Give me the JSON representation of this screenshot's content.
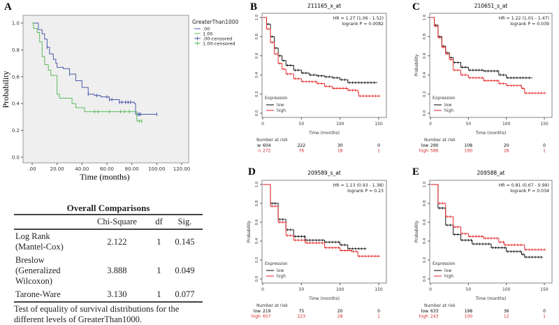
{
  "chart_data": [
    {
      "panel": "A",
      "type": "line",
      "title": "",
      "xlabel": "Time (months)",
      "ylabel": "Probability",
      "xlim": [
        0,
        120
      ],
      "ylim": [
        0,
        1
      ],
      "xticks": [
        ".00",
        "20.00",
        "40.00",
        "60.00",
        "80.00",
        "100.00",
        "120.00"
      ],
      "xtick_values": [
        0,
        20,
        40,
        60,
        80,
        100,
        120
      ],
      "yticks": [
        "0.0",
        "0.2",
        "0.4",
        "0.6",
        "0.8",
        "1.0"
      ],
      "ytick_values": [
        0,
        0.2,
        0.4,
        0.6,
        0.8,
        1.0
      ],
      "legend_title": "GreaterThan1000",
      "legend": [
        ".00",
        "1.00",
        ".00-censored",
        "1.00-censored"
      ],
      "legend_placement": "right-outside",
      "background": "#efefef",
      "series": [
        {
          "name": ".00",
          "color": "#4a5aa8",
          "points": [
            [
              0,
              1
            ],
            [
              3,
              1
            ],
            [
              5,
              0.95
            ],
            [
              8,
              0.92
            ],
            [
              10,
              0.88
            ],
            [
              12,
              0.82
            ],
            [
              14,
              0.77
            ],
            [
              17,
              0.73
            ],
            [
              19,
              0.7
            ],
            [
              20,
              0.67
            ],
            [
              25,
              0.66
            ],
            [
              30,
              0.62
            ],
            [
              35,
              0.57
            ],
            [
              40,
              0.52
            ],
            [
              45,
              0.47
            ],
            [
              50,
              0.46
            ],
            [
              55,
              0.45
            ],
            [
              62,
              0.43
            ],
            [
              70,
              0.41
            ],
            [
              82,
              0.4
            ],
            [
              83,
              0.32
            ],
            [
              100,
              0.32
            ]
          ],
          "censored": [
            12,
            30,
            45,
            52,
            60,
            62,
            64,
            70,
            72,
            75,
            77,
            79,
            85,
            86,
            87,
            100
          ]
        },
        {
          "name": "1.00",
          "color": "#5cb85c",
          "points": [
            [
              0,
              1
            ],
            [
              1,
              0.96
            ],
            [
              4,
              0.93
            ],
            [
              6,
              0.86
            ],
            [
              8,
              0.75
            ],
            [
              10,
              0.69
            ],
            [
              13,
              0.65
            ],
            [
              15,
              0.61
            ],
            [
              18,
              0.61
            ],
            [
              20,
              0.47
            ],
            [
              22,
              0.44
            ],
            [
              30,
              0.44
            ],
            [
              32,
              0.4
            ],
            [
              35,
              0.37
            ],
            [
              42,
              0.34
            ],
            [
              84,
              0.34
            ],
            [
              84,
              0.27
            ],
            [
              88,
              0.27
            ]
          ],
          "censored": [
            50,
            53,
            62,
            71,
            74,
            78,
            86,
            88
          ]
        }
      ]
    },
    {
      "panel": "B",
      "type": "line",
      "title": "211165_x_at",
      "hr": "HR = 1.27 (1.06 - 1.52)",
      "p": "logrank P = 0.0082",
      "xlabel": "Time (months)",
      "ylabel": "",
      "xlim": [
        0,
        150
      ],
      "ylim": [
        0,
        1
      ],
      "risk_header": "Number at risk",
      "risk_rows": [
        {
          "label": "w",
          "color": "#000000",
          "values": [
            "604",
            "222",
            "30",
            "0"
          ]
        },
        {
          "label": "n",
          "color": "#d62728",
          "values": [
            "272",
            "76",
            "18",
            "1"
          ]
        }
      ],
      "series": [
        {
          "name": "low",
          "color": "#000000",
          "points": [
            [
              0,
              1
            ],
            [
              5,
              0.93
            ],
            [
              10,
              0.8
            ],
            [
              15,
              0.68
            ],
            [
              20,
              0.6
            ],
            [
              25,
              0.55
            ],
            [
              30,
              0.5
            ],
            [
              40,
              0.45
            ],
            [
              50,
              0.42
            ],
            [
              60,
              0.4
            ],
            [
              70,
              0.39
            ],
            [
              80,
              0.38
            ],
            [
              90,
              0.37
            ],
            [
              100,
              0.35
            ],
            [
              110,
              0.32
            ],
            [
              148,
              0.32
            ]
          ]
        },
        {
          "name": "high",
          "color": "#e31a1c",
          "points": [
            [
              0,
              1
            ],
            [
              5,
              0.88
            ],
            [
              10,
              0.74
            ],
            [
              15,
              0.62
            ],
            [
              20,
              0.52
            ],
            [
              25,
              0.46
            ],
            [
              30,
              0.41
            ],
            [
              40,
              0.36
            ],
            [
              50,
              0.33
            ],
            [
              70,
              0.31
            ],
            [
              80,
              0.28
            ],
            [
              90,
              0.26
            ],
            [
              110,
              0.24
            ],
            [
              123,
              0.22
            ],
            [
              124,
              0.18
            ],
            [
              152,
              0.18
            ]
          ]
        }
      ]
    },
    {
      "panel": "C",
      "type": "line",
      "title": "210651_s_at",
      "hr": "HR = 1.22 (1.01 - 1.47)",
      "p": "logrank P = 0.039",
      "xlabel": "Time (months)",
      "ylabel": "Probability",
      "xlim": [
        0,
        150
      ],
      "ylim": [
        0,
        1
      ],
      "risk_header": "Number at risk",
      "risk_rows": [
        {
          "label": "low",
          "color": "#000000",
          "values": [
            "290",
            "108",
            "20",
            "0"
          ]
        },
        {
          "label": "high",
          "color": "#d62728",
          "values": [
            "586",
            "190",
            "28",
            "1"
          ]
        }
      ],
      "series": [
        {
          "name": "low",
          "color": "#000000",
          "points": [
            [
              0,
              1
            ],
            [
              5,
              0.92
            ],
            [
              10,
              0.8
            ],
            [
              15,
              0.7
            ],
            [
              20,
              0.63
            ],
            [
              25,
              0.58
            ],
            [
              30,
              0.53
            ],
            [
              40,
              0.48
            ],
            [
              50,
              0.45
            ],
            [
              70,
              0.44
            ],
            [
              90,
              0.4
            ],
            [
              100,
              0.37
            ],
            [
              134,
              0.37
            ]
          ]
        },
        {
          "name": "high",
          "color": "#e31a1c",
          "points": [
            [
              0,
              1
            ],
            [
              5,
              0.91
            ],
            [
              10,
              0.79
            ],
            [
              15,
              0.69
            ],
            [
              20,
              0.62
            ],
            [
              25,
              0.56
            ],
            [
              30,
              0.45
            ],
            [
              40,
              0.4
            ],
            [
              50,
              0.37
            ],
            [
              70,
              0.34
            ],
            [
              90,
              0.31
            ],
            [
              100,
              0.29
            ],
            [
              120,
              0.26
            ],
            [
              124,
              0.21
            ],
            [
              152,
              0.21
            ]
          ]
        }
      ]
    },
    {
      "panel": "D",
      "type": "line",
      "title": "209589_s_at",
      "hr": "HR = 1.13 (0.93 - 1.38)",
      "p": "logrank P = 0.23",
      "xlabel": "Time (months)",
      "ylabel": "Probability",
      "xlim": [
        0,
        150
      ],
      "ylim": [
        0,
        1
      ],
      "risk_header": "Number at risk",
      "risk_rows": [
        {
          "label": "low",
          "color": "#000000",
          "values": [
            "219",
            "75",
            "20",
            "0"
          ]
        },
        {
          "label": "high",
          "color": "#d62728",
          "values": [
            "657",
            "223",
            "28",
            "1"
          ]
        }
      ],
      "series": [
        {
          "name": "low",
          "color": "#000000",
          "points": [
            [
              0,
              1
            ],
            [
              10,
              0.8
            ],
            [
              20,
              0.63
            ],
            [
              30,
              0.52
            ],
            [
              40,
              0.45
            ],
            [
              55,
              0.41
            ],
            [
              80,
              0.39
            ],
            [
              100,
              0.36
            ],
            [
              110,
              0.32
            ],
            [
              134,
              0.32
            ]
          ]
        },
        {
          "name": "high",
          "color": "#e31a1c",
          "points": [
            [
              0,
              1
            ],
            [
              10,
              0.77
            ],
            [
              20,
              0.6
            ],
            [
              30,
              0.46
            ],
            [
              40,
              0.41
            ],
            [
              55,
              0.38
            ],
            [
              80,
              0.33
            ],
            [
              100,
              0.3
            ],
            [
              115,
              0.29
            ],
            [
              123,
              0.24
            ],
            [
              152,
              0.24
            ]
          ]
        }
      ]
    },
    {
      "panel": "E",
      "type": "line",
      "title": "209588_at",
      "hr": "HR = 0.81 (0.67 - 0.99)",
      "p": "logrank P = 0.034",
      "xlabel": "Time (months)",
      "ylabel": "Probability",
      "xlim": [
        0,
        150
      ],
      "ylim": [
        0,
        1
      ],
      "risk_header": "Number at risk",
      "risk_rows": [
        {
          "label": "low",
          "color": "#000000",
          "values": [
            "633",
            "198",
            "36",
            "0"
          ]
        },
        {
          "label": "high",
          "color": "#d62728",
          "values": [
            "243",
            "100",
            "12",
            "1"
          ]
        }
      ],
      "series": [
        {
          "name": "low",
          "color": "#000000",
          "points": [
            [
              0,
              1
            ],
            [
              10,
              0.75
            ],
            [
              20,
              0.57
            ],
            [
              30,
              0.47
            ],
            [
              40,
              0.41
            ],
            [
              55,
              0.37
            ],
            [
              80,
              0.33
            ],
            [
              100,
              0.29
            ],
            [
              120,
              0.26
            ],
            [
              124,
              0.23
            ],
            [
              148,
              0.23
            ]
          ]
        },
        {
          "name": "high",
          "color": "#e31a1c",
          "points": [
            [
              0,
              1
            ],
            [
              10,
              0.8
            ],
            [
              20,
              0.66
            ],
            [
              30,
              0.55
            ],
            [
              40,
              0.48
            ],
            [
              50,
              0.45
            ],
            [
              70,
              0.43
            ],
            [
              90,
              0.39
            ],
            [
              97,
              0.36
            ],
            [
              123,
              0.36
            ],
            [
              124,
              0.31
            ],
            [
              152,
              0.31
            ]
          ]
        }
      ]
    }
  ],
  "km_common": {
    "xticks": [
      "0",
      "50",
      "100",
      "150"
    ],
    "xtick_values": [
      0,
      50,
      100,
      150
    ],
    "yticks": [
      "0.0",
      "0.2",
      "0.4",
      "0.6",
      "0.8",
      "1.0"
    ],
    "legend_title": "Expression",
    "legend": [
      "low",
      "high"
    ]
  },
  "table": {
    "title": "Overall Comparisons",
    "columns": [
      "",
      "Chi-Square",
      "df",
      "Sig."
    ],
    "rows": [
      [
        "Log Rank (Mantel-Cox)",
        "2.122",
        "1",
        "0.145"
      ],
      [
        "Breslow (Generalized Wilcoxon)",
        "3.888",
        "1",
        "0.049"
      ],
      [
        "Tarone-Ware",
        "3.130",
        "1",
        "0.077"
      ]
    ],
    "footnote": "Test of equality of survival distributions for the different levels of GreaterThan1000."
  }
}
